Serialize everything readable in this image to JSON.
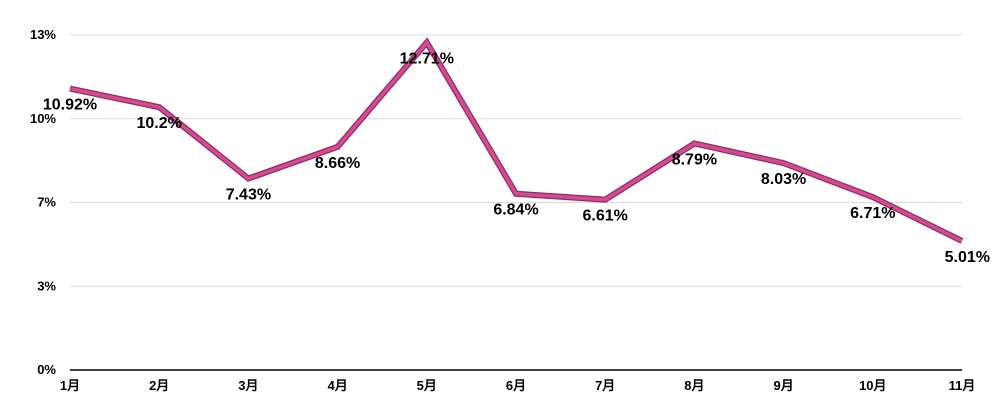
{
  "chart_data": {
    "type": "line",
    "categories": [
      "1月",
      "2月",
      "3月",
      "4月",
      "5月",
      "6月",
      "7月",
      "8月",
      "9月",
      "10月",
      "11月"
    ],
    "series": [
      {
        "values": [
          10.92,
          10.2,
          7.43,
          8.66,
          12.71,
          6.84,
          6.61,
          8.79,
          8.03,
          6.71,
          5.01
        ],
        "labels": [
          "10.92%",
          "10.2%",
          "7.43%",
          "8.66%",
          "12.71%",
          "6.84%",
          "6.61%",
          "8.79%",
          "8.03%",
          "6.71%",
          "5.01%"
        ],
        "color": "#d44a94"
      }
    ],
    "y_ticks": [
      0,
      3.25,
      6.5,
      9.75,
      13
    ],
    "y_tick_labels": [
      "0%",
      "3%",
      "7%",
      "10%",
      "13%"
    ],
    "ylim": [
      0,
      13
    ],
    "grid": true,
    "title": "",
    "xlabel": "",
    "ylabel": ""
  }
}
